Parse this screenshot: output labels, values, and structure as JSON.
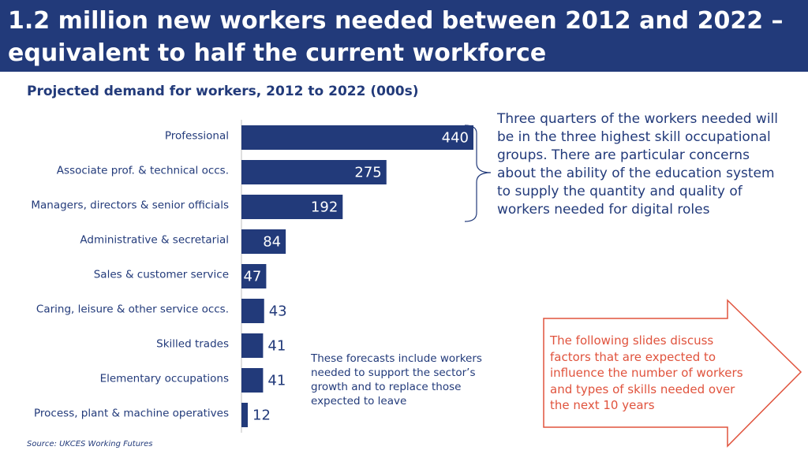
{
  "header": {
    "title": "1.2 million new workers needed between 2012 and 2022 – equivalent to half the current workforce",
    "background": "#223a7a"
  },
  "chart_data": {
    "type": "bar",
    "orientation": "horizontal",
    "title": "Projected demand for workers, 2012 to 2022 (000s)",
    "categories": [
      "Professional",
      "Associate prof. & technical occs.",
      "Managers, directors & senior officials",
      "Administrative & secretarial",
      "Sales & customer service",
      "Caring, leisure & other service occs.",
      "Skilled trades",
      "Elementary occupations",
      "Process, plant & machine operatives"
    ],
    "values": [
      440,
      275,
      192,
      84,
      47,
      43,
      41,
      41,
      12
    ],
    "bar_color": "#223a7a",
    "xlim": [
      0,
      440
    ],
    "grid": false
  },
  "note": {
    "text": "Three quarters of the workers needed will be in the three highest skill occupational groups. There are particular concerns about the ability of the education system to supply the quantity and quality of workers needed for digital roles"
  },
  "forecast_note": {
    "text": "These forecasts include workers needed to support the sector’s growth and to replace those expected to leave"
  },
  "callout": {
    "text": "The following slides discuss factors that are expected to influence the number of workers and types of skills needed over the next 10 years",
    "color": "#e0533d"
  },
  "source": "Source: UKCES Working Futures"
}
